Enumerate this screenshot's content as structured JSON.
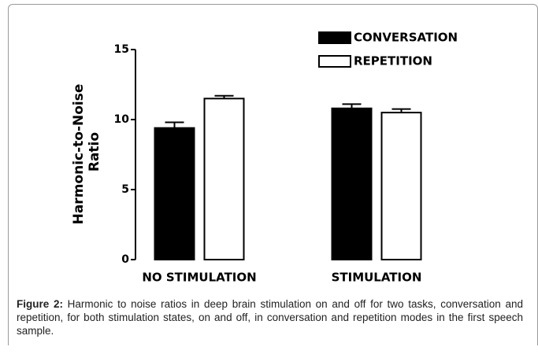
{
  "chart_data": {
    "type": "bar",
    "y_label": "Harmonic-to-Noise Ratio",
    "categories": [
      "NO STIMULATION",
      "STIMULATION"
    ],
    "series": [
      {
        "name": "CONVERSATION",
        "color": "#000000",
        "values": [
          9.4,
          10.8
        ],
        "errors": [
          0.4,
          0.3
        ]
      },
      {
        "name": "REPETITION",
        "color": "#ffffff",
        "values": [
          11.5,
          10.5
        ],
        "errors": [
          0.2,
          0.25
        ]
      }
    ],
    "ylim": [
      0,
      15
    ],
    "yticks": [
      0,
      5,
      10,
      15
    ],
    "legend": "upper right"
  },
  "caption": {
    "label": "Figure 2:",
    "text": "Harmonic to noise ratios in deep brain stimulation on and off for two tasks, conversation and repetition, for both stimulation states, on and off, in conversation and repetition modes in the first speech sample."
  }
}
